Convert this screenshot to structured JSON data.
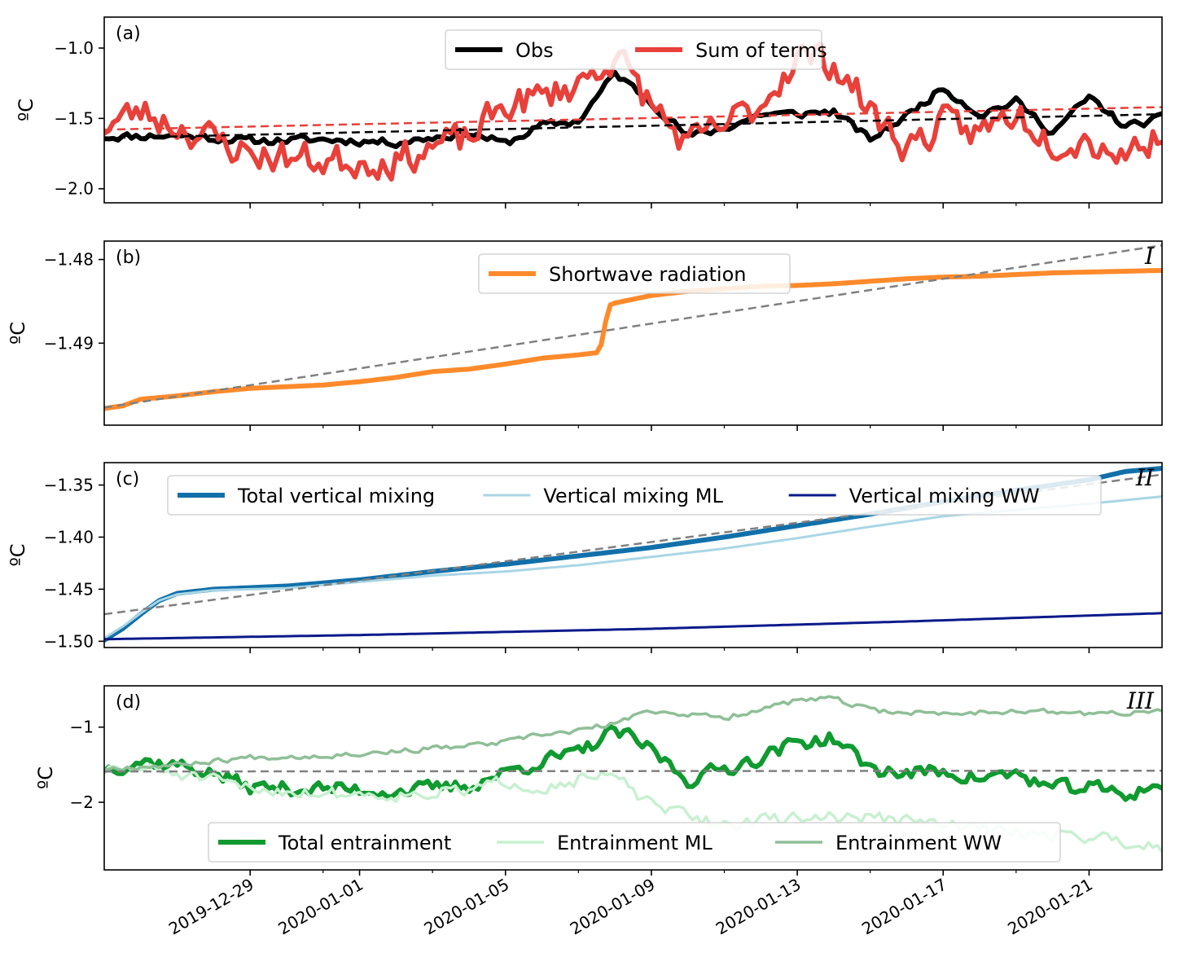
{
  "chart_data": [
    {
      "type": "line",
      "panel_label": "(a)",
      "ylabel": "ºC",
      "ylim": [
        -2.1,
        -0.78
      ],
      "yticks": [
        -2.0,
        -1.5,
        -1.0
      ],
      "ytick_labels": [
        "−2.0",
        "−1.5",
        "−1.0"
      ],
      "legend": {
        "placement": "top-center",
        "ncol": 2
      },
      "series": [
        {
          "name": "Obs",
          "color": "#000000",
          "width": 6,
          "noise": {
            "seed": 11,
            "amp": 0.04
          },
          "x": [
            "2019-12-25",
            "2019-12-27",
            "2019-12-29",
            "2019-12-31",
            "2020-01-02",
            "2020-01-04",
            "2020-01-05",
            "2020-01-06",
            "2020-01-07",
            "2020-01-08",
            "2020-01-09",
            "2020-01-10",
            "2020-01-11",
            "2020-01-12",
            "2020-01-13",
            "2020-01-14",
            "2020-01-15",
            "2020-01-16",
            "2020-01-17",
            "2020-01-18",
            "2020-01-19",
            "2020-01-20",
            "2020-01-21",
            "2020-01-22",
            "2020-01-23"
          ],
          "y": [
            -1.63,
            -1.62,
            -1.66,
            -1.65,
            -1.67,
            -1.6,
            -1.68,
            -1.55,
            -1.52,
            -1.18,
            -1.38,
            -1.63,
            -1.57,
            -1.47,
            -1.47,
            -1.45,
            -1.65,
            -1.48,
            -1.28,
            -1.47,
            -1.38,
            -1.6,
            -1.35,
            -1.56,
            -1.5
          ]
        },
        {
          "name": "Sum of terms",
          "color": "#e8403a",
          "width": 6,
          "noise": {
            "seed": 23,
            "amp": 0.17
          },
          "x": [
            "2019-12-25",
            "2019-12-26",
            "2019-12-27",
            "2019-12-28",
            "2019-12-29",
            "2019-12-31",
            "2020-01-02",
            "2020-01-03",
            "2020-01-04",
            "2020-01-05",
            "2020-01-06",
            "2020-01-07",
            "2020-01-08",
            "2020-01-09",
            "2020-01-10",
            "2020-01-11",
            "2020-01-12",
            "2020-01-13",
            "2020-01-14",
            "2020-01-15",
            "2020-01-16",
            "2020-01-17",
            "2020-01-18",
            "2020-01-19",
            "2020-01-20",
            "2020-01-21",
            "2020-01-22",
            "2020-01-23"
          ],
          "y": [
            -1.55,
            -1.45,
            -1.55,
            -1.65,
            -1.75,
            -1.8,
            -1.8,
            -1.7,
            -1.65,
            -1.4,
            -1.35,
            -1.25,
            -1.05,
            -1.4,
            -1.7,
            -1.55,
            -1.4,
            -1.05,
            -1.1,
            -1.45,
            -1.7,
            -1.55,
            -1.6,
            -1.45,
            -1.65,
            -1.65,
            -1.75,
            -1.6
          ]
        },
        {
          "name": "",
          "color": "#000000",
          "width": 2.5,
          "dash": "10,6",
          "x": [
            "2019-12-25",
            "2020-01-23"
          ],
          "y": [
            -1.64,
            -1.47
          ]
        },
        {
          "name": "",
          "color": "#e8403a",
          "width": 2.5,
          "dash": "10,6",
          "x": [
            "2019-12-25",
            "2020-01-23"
          ],
          "y": [
            -1.58,
            -1.42
          ]
        }
      ]
    },
    {
      "type": "line",
      "panel_label": "(b)",
      "corner_label": "I",
      "ylabel": "ºC",
      "ylim": [
        -1.4998,
        -1.4778
      ],
      "yticks": [
        -1.49,
        -1.48
      ],
      "ytick_labels": [
        "−1.49",
        "−1.48"
      ],
      "legend": {
        "placement": "top-center",
        "ncol": 1
      },
      "series": [
        {
          "name": "Shortwave radiation",
          "color": "#ff8a2b",
          "width": 6,
          "x": [
            "2019-12-25",
            "2019-12-25 12:00",
            "2019-12-26",
            "2019-12-27",
            "2019-12-28",
            "2019-12-29",
            "2019-12-30",
            "2019-12-31",
            "2020-01-01",
            "2020-01-02",
            "2020-01-03",
            "2020-01-04",
            "2020-01-05",
            "2020-01-06",
            "2020-01-07",
            "2020-01-07 14:00",
            "2020-01-07 20:00",
            "2020-01-08",
            "2020-01-09",
            "2020-01-10",
            "2020-01-11",
            "2020-01-12",
            "2020-01-13",
            "2020-01-14",
            "2020-01-15",
            "2020-01-16",
            "2020-01-17",
            "2020-01-18",
            "2020-01-19",
            "2020-01-20",
            "2020-01-21",
            "2020-01-22",
            "2020-01-23"
          ],
          "y": [
            -1.4978,
            -1.4975,
            -1.4967,
            -1.4963,
            -1.4958,
            -1.4954,
            -1.4952,
            -1.495,
            -1.4946,
            -1.4941,
            -1.4934,
            -1.4931,
            -1.4925,
            -1.4918,
            -1.4914,
            -1.4911,
            -1.4855,
            -1.4852,
            -1.4843,
            -1.4838,
            -1.4835,
            -1.4832,
            -1.4831,
            -1.4829,
            -1.4826,
            -1.4823,
            -1.4821,
            -1.482,
            -1.4818,
            -1.4816,
            -1.4815,
            -1.4814,
            -1.4813
          ]
        },
        {
          "name": "",
          "color": "#808080",
          "width": 2.5,
          "dash": "10,6",
          "x": [
            "2019-12-25",
            "2020-01-23"
          ],
          "y": [
            -1.4977,
            -1.4783
          ]
        }
      ]
    },
    {
      "type": "line",
      "panel_label": "(c)",
      "corner_label": "II",
      "ylabel": "ºC",
      "ylim": [
        -1.506,
        -1.3285
      ],
      "yticks": [
        -1.5,
        -1.45,
        -1.4,
        -1.35
      ],
      "ytick_labels": [
        "−1.50",
        "−1.45",
        "−1.40",
        "−1.35"
      ],
      "legend": {
        "placement": "top-center",
        "ncol": 3
      },
      "series": [
        {
          "name": "Total vertical mixing",
          "color": "#1170aa",
          "width": 6,
          "x": [
            "2019-12-25",
            "2019-12-25 12:00",
            "2019-12-26",
            "2019-12-26 12:00",
            "2019-12-27",
            "2019-12-28",
            "2019-12-30",
            "2020-01-01",
            "2020-01-03",
            "2020-01-05",
            "2020-01-07",
            "2020-01-09",
            "2020-01-11",
            "2020-01-13",
            "2020-01-15",
            "2020-01-17",
            "2020-01-19",
            "2020-01-21",
            "2020-01-22",
            "2020-01-23"
          ],
          "y": [
            -1.499,
            -1.488,
            -1.474,
            -1.461,
            -1.454,
            -1.45,
            -1.447,
            -1.441,
            -1.433,
            -1.426,
            -1.418,
            -1.41,
            -1.4,
            -1.389,
            -1.378,
            -1.366,
            -1.355,
            -1.345,
            -1.337,
            -1.334
          ]
        },
        {
          "name": "Vertical mixing ML",
          "color": "#a9d6e5",
          "width": 3,
          "x": [
            "2019-12-25",
            "2019-12-25 12:00",
            "2019-12-26",
            "2019-12-26 12:00",
            "2019-12-27",
            "2019-12-28",
            "2019-12-30",
            "2020-01-01",
            "2020-01-03",
            "2020-01-05",
            "2020-01-07",
            "2020-01-09",
            "2020-01-11",
            "2020-01-13",
            "2020-01-15",
            "2020-01-17",
            "2020-01-19",
            "2020-01-21",
            "2020-01-23"
          ],
          "y": [
            -1.497,
            -1.486,
            -1.473,
            -1.461,
            -1.455,
            -1.451,
            -1.449,
            -1.443,
            -1.437,
            -1.433,
            -1.427,
            -1.419,
            -1.411,
            -1.401,
            -1.39,
            -1.38,
            -1.374,
            -1.368,
            -1.361
          ]
        },
        {
          "name": "Vertical mixing WW",
          "color": "#0a1a8a",
          "width": 3,
          "x": [
            "2019-12-25",
            "2020-01-01",
            "2020-01-09",
            "2020-01-16",
            "2020-01-23"
          ],
          "y": [
            -1.498,
            -1.494,
            -1.488,
            -1.481,
            -1.473
          ]
        },
        {
          "name": "",
          "color": "#808080",
          "width": 2.5,
          "dash": "10,6",
          "x": [
            "2019-12-25",
            "2020-01-23"
          ],
          "y": [
            -1.474,
            -1.34
          ]
        }
      ]
    },
    {
      "type": "line",
      "panel_label": "(d)",
      "corner_label": "III",
      "ylabel": "ºC",
      "ylim": [
        -2.9,
        -0.45
      ],
      "yticks": [
        -2,
        -1
      ],
      "ytick_labels": [
        "−2",
        "−1"
      ],
      "legend": {
        "placement": "bottom-center",
        "ncol": 3
      },
      "series": [
        {
          "name": "Total entrainment",
          "color": "#109a30",
          "width": 6,
          "noise": {
            "seed": 37,
            "amp": 0.14
          },
          "x": [
            "2019-12-25",
            "2019-12-26",
            "2019-12-27",
            "2019-12-28",
            "2019-12-29",
            "2019-12-31",
            "2020-01-02",
            "2020-01-03",
            "2020-01-04",
            "2020-01-05",
            "2020-01-06",
            "2020-01-07",
            "2020-01-08",
            "2020-01-09",
            "2020-01-10",
            "2020-01-11",
            "2020-01-12",
            "2020-01-13",
            "2020-01-14",
            "2020-01-15",
            "2020-01-16",
            "2020-01-17",
            "2020-01-18",
            "2020-01-19",
            "2020-01-20",
            "2020-01-21",
            "2020-01-22",
            "2020-01-23"
          ],
          "y": [
            -1.55,
            -1.45,
            -1.5,
            -1.62,
            -1.8,
            -1.82,
            -1.85,
            -1.82,
            -1.78,
            -1.6,
            -1.45,
            -1.35,
            -1.05,
            -1.3,
            -1.7,
            -1.55,
            -1.4,
            -1.2,
            -1.15,
            -1.55,
            -1.62,
            -1.58,
            -1.68,
            -1.62,
            -1.82,
            -1.8,
            -1.9,
            -1.75
          ]
        },
        {
          "name": "Entrainment ML",
          "color": "#c8f0d0",
          "width": 3.5,
          "noise": {
            "seed": 51,
            "amp": 0.12
          },
          "x": [
            "2019-12-25",
            "2019-12-26",
            "2019-12-27",
            "2019-12-29",
            "2019-12-31",
            "2020-01-02",
            "2020-01-04",
            "2020-01-05",
            "2020-01-06",
            "2020-01-07",
            "2020-01-08",
            "2020-01-09",
            "2020-01-11",
            "2020-01-13",
            "2020-01-15",
            "2020-01-17",
            "2020-01-19",
            "2020-01-21",
            "2020-01-23"
          ],
          "y": [
            -1.58,
            -1.55,
            -1.62,
            -1.82,
            -1.88,
            -1.9,
            -1.85,
            -1.72,
            -1.8,
            -1.7,
            -1.65,
            -2.05,
            -2.3,
            -2.2,
            -2.2,
            -2.3,
            -2.4,
            -2.45,
            -2.6
          ]
        },
        {
          "name": "Entrainment WW",
          "color": "#8fbf97",
          "width": 3.5,
          "noise": {
            "seed": 67,
            "amp": 0.05
          },
          "x": [
            "2019-12-25",
            "2019-12-27",
            "2019-12-29",
            "2019-12-31",
            "2020-01-02",
            "2020-01-04",
            "2020-01-05",
            "2020-01-06",
            "2020-01-07",
            "2020-01-08",
            "2020-01-09",
            "2020-01-11",
            "2020-01-12",
            "2020-01-13",
            "2020-01-14",
            "2020-01-15",
            "2020-01-17",
            "2020-01-19",
            "2020-01-21",
            "2020-01-23"
          ],
          "y": [
            -1.55,
            -1.5,
            -1.4,
            -1.38,
            -1.32,
            -1.25,
            -1.2,
            -1.1,
            -1.05,
            -0.95,
            -0.78,
            -0.88,
            -0.75,
            -0.65,
            -0.62,
            -0.78,
            -0.82,
            -0.78,
            -0.82,
            -0.8
          ]
        },
        {
          "name": "",
          "color": "#808080",
          "width": 2.5,
          "dash": "10,6",
          "x": [
            "2019-12-25",
            "2020-01-23"
          ],
          "y": [
            -1.59,
            -1.58
          ]
        }
      ]
    }
  ],
  "x_axis": {
    "range": [
      "2019-12-25",
      "2020-01-23"
    ],
    "major_ticks": [
      "2019-12-29",
      "2020-01-01",
      "2020-01-05",
      "2020-01-09",
      "2020-01-13",
      "2020-01-17",
      "2020-01-21"
    ],
    "minor_ticks": [
      "2019-12-31",
      "2020-01-03",
      "2020-01-07",
      "2020-01-11",
      "2020-01-15",
      "2020-01-19"
    ]
  }
}
